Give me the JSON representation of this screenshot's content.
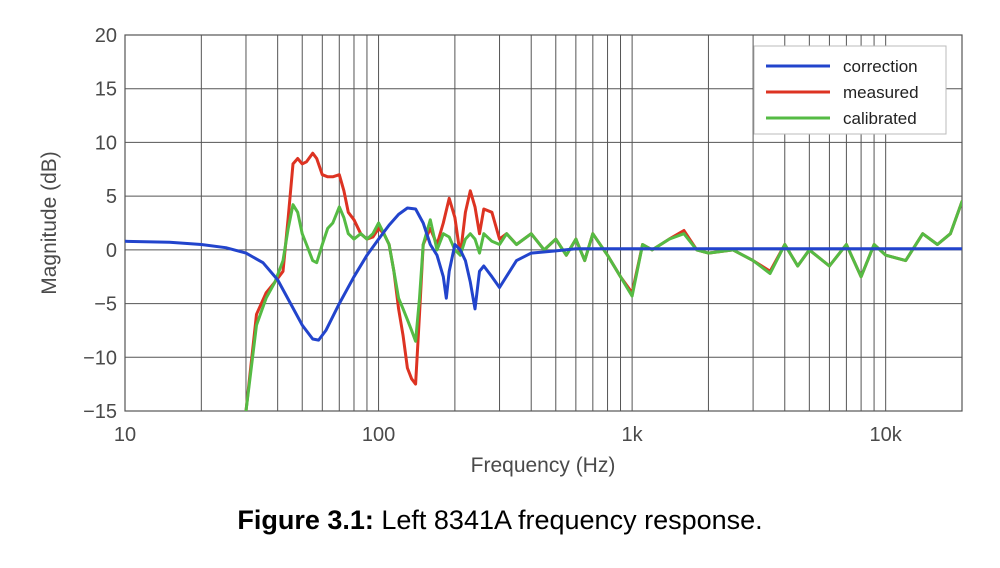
{
  "caption": {
    "label": "Figure 3.1:",
    "text": " Left 8341A frequency response."
  },
  "chart_data": {
    "type": "line",
    "xscale": "log",
    "xlim": [
      10,
      20000
    ],
    "ylim": [
      -15,
      20
    ],
    "xlabel": "Frequency (Hz)",
    "ylabel": "Magnitude (dB)",
    "grid": true,
    "legend_position": "top-right",
    "x_ticks": [
      {
        "value": 10,
        "label": "10"
      },
      {
        "value": 100,
        "label": "100"
      },
      {
        "value": 1000,
        "label": "1k"
      },
      {
        "value": 10000,
        "label": "10k"
      }
    ],
    "y_ticks": [
      {
        "value": 20,
        "label": "20"
      },
      {
        "value": 15,
        "label": "15"
      },
      {
        "value": 10,
        "label": "10"
      },
      {
        "value": 5,
        "label": "5"
      },
      {
        "value": 0,
        "label": "0"
      },
      {
        "value": -5,
        "label": "−5"
      },
      {
        "value": -10,
        "label": "−10"
      },
      {
        "value": -15,
        "label": "−15"
      }
    ],
    "series": [
      {
        "name": "correction",
        "color": "#2244cc",
        "x": [
          10,
          15,
          20,
          25,
          30,
          35,
          40,
          45,
          50,
          55,
          58,
          62,
          70,
          80,
          90,
          100,
          110,
          120,
          130,
          140,
          150,
          160,
          170,
          180,
          185,
          190,
          200,
          210,
          220,
          230,
          240,
          250,
          260,
          280,
          300,
          350,
          400,
          500,
          600,
          700,
          1000,
          2000,
          5000,
          10000,
          20000
        ],
        "y": [
          0.8,
          0.7,
          0.5,
          0.2,
          -0.3,
          -1.2,
          -2.8,
          -5.0,
          -7.0,
          -8.3,
          -8.4,
          -7.5,
          -5.0,
          -2.5,
          -0.5,
          1.0,
          2.3,
          3.3,
          3.9,
          3.8,
          2.5,
          0.5,
          -0.5,
          -2.5,
          -4.5,
          -2.0,
          0.5,
          0.0,
          -1.0,
          -3.0,
          -5.5,
          -2.0,
          -1.5,
          -2.5,
          -3.5,
          -1.0,
          -0.3,
          -0.1,
          0.1,
          0.1,
          0.1,
          0.1,
          0.1,
          0.1,
          0.1
        ]
      },
      {
        "name": "measured",
        "color": "#dd3322",
        "x": [
          30,
          33,
          36,
          39,
          42,
          44,
          46,
          48,
          50,
          52,
          55,
          57,
          60,
          63,
          66,
          70,
          73,
          76,
          80,
          85,
          90,
          95,
          100,
          105,
          110,
          115,
          120,
          125,
          130,
          135,
          140,
          145,
          150,
          160,
          170,
          180,
          190,
          200,
          210,
          220,
          230,
          240,
          250,
          260,
          280,
          300,
          320,
          350,
          400,
          450,
          500,
          550,
          600,
          650,
          700,
          800,
          900,
          1000,
          1100,
          1200,
          1400,
          1600,
          1800,
          2000,
          2500,
          3000,
          3500,
          4000,
          4500,
          5000,
          6000,
          7000,
          8000,
          9000,
          10000,
          12000,
          14000,
          16000,
          18000,
          20000
        ],
        "y": [
          -15,
          -6,
          -4,
          -3,
          -2,
          3,
          8,
          8.5,
          8,
          8.2,
          9,
          8.5,
          7,
          6.8,
          6.8,
          7,
          5.5,
          3.5,
          2.8,
          1.5,
          1.0,
          1.2,
          2.0,
          1.5,
          0.5,
          -2.0,
          -5.5,
          -8.0,
          -11.0,
          -12.0,
          -12.5,
          -6.0,
          0.5,
          2.0,
          0.5,
          2.5,
          4.8,
          3.0,
          -0.5,
          3.5,
          5.5,
          4.0,
          1.5,
          3.8,
          3.5,
          1.0,
          1.5,
          0.5,
          1.5,
          0.0,
          1.0,
          -0.5,
          1.0,
          -1.0,
          1.5,
          -0.5,
          -2.5,
          -4.0,
          0.5,
          0.0,
          1.0,
          1.8,
          0.0,
          -0.3,
          0.0,
          -1.0,
          -2.0,
          0.5,
          -1.5,
          0.0,
          -1.5,
          0.5,
          -2.5,
          0.5,
          -0.5,
          -1.0,
          1.5,
          0.5,
          1.5,
          4.5
        ]
      },
      {
        "name": "calibrated",
        "color": "#55bb44",
        "x": [
          30,
          33,
          36,
          39,
          42,
          44,
          46,
          48,
          50,
          52,
          55,
          57,
          60,
          63,
          66,
          70,
          73,
          76,
          80,
          85,
          90,
          95,
          100,
          105,
          110,
          115,
          120,
          125,
          130,
          135,
          140,
          145,
          150,
          160,
          170,
          180,
          190,
          200,
          210,
          220,
          230,
          240,
          250,
          260,
          280,
          300,
          320,
          350,
          400,
          450,
          500,
          550,
          600,
          650,
          700,
          800,
          900,
          1000,
          1100,
          1200,
          1400,
          1600,
          1800,
          2000,
          2500,
          3000,
          3500,
          4000,
          4500,
          5000,
          6000,
          7000,
          8000,
          9000,
          10000,
          12000,
          14000,
          16000,
          18000,
          20000
        ],
        "y": [
          -15,
          -7,
          -4.5,
          -3,
          -1,
          2,
          4.2,
          3.5,
          1.5,
          0.5,
          -1.0,
          -1.2,
          0.5,
          2.0,
          2.5,
          4.0,
          3.0,
          1.5,
          1.0,
          1.5,
          1.0,
          1.5,
          2.5,
          1.5,
          0.5,
          -2.0,
          -4.5,
          -5.5,
          -6.5,
          -7.5,
          -8.5,
          -4.5,
          0.5,
          2.8,
          0.0,
          1.5,
          1.2,
          0.0,
          -0.5,
          1.0,
          1.5,
          1.0,
          -0.3,
          1.5,
          0.8,
          0.5,
          1.5,
          0.5,
          1.5,
          0.0,
          1.0,
          -0.5,
          1.0,
          -1.0,
          1.5,
          -0.5,
          -2.5,
          -4.3,
          0.5,
          0.0,
          1.0,
          1.5,
          0.0,
          -0.3,
          0.0,
          -1.0,
          -2.2,
          0.5,
          -1.5,
          0.0,
          -1.5,
          0.5,
          -2.5,
          0.5,
          -0.5,
          -1.0,
          1.5,
          0.5,
          1.5,
          4.5
        ]
      }
    ]
  }
}
